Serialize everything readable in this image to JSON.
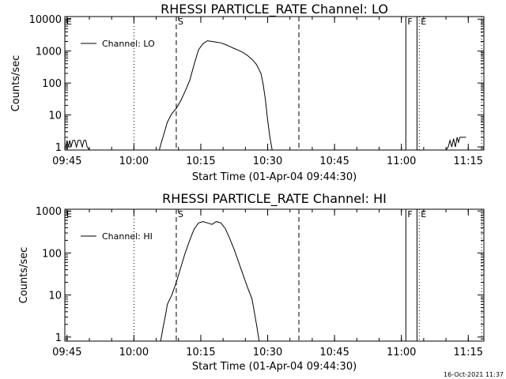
{
  "footer_timestamp": "16-Oct-2021 11:37",
  "chart_data": [
    {
      "type": "line",
      "title": "RHESSI PARTICLE_RATE Channel: LO",
      "xlabel": "Start Time (01-Apr-04 09:44:30)",
      "ylabel": "Counts/sec",
      "yscale": "log",
      "ylim": [
        0.8,
        12000
      ],
      "xlim_min_after_09_44_30": [
        0,
        94
      ],
      "x_ticks": [
        "09:45",
        "10:00",
        "10:15",
        "10:30",
        "10:45",
        "11:00",
        "11:15"
      ],
      "y_ticks": [
        {
          "value": 1,
          "label": "1"
        },
        {
          "value": 10,
          "label": "10"
        },
        {
          "value": 100,
          "label": "100"
        },
        {
          "value": 1000,
          "label": "1000"
        },
        {
          "value": 10000,
          "label": "10000"
        }
      ],
      "legend": {
        "position": "top-left",
        "entries": [
          "Channel: LO"
        ]
      },
      "grid": false,
      "markers": [
        {
          "label": "E",
          "time": "09:44:30",
          "style": "dotted"
        },
        {
          "label": "",
          "time": "10:00:00",
          "style": "dotted"
        },
        {
          "label": "S",
          "time": "10:09:30",
          "style": "dashed"
        },
        {
          "label": "",
          "time": "10:37:00",
          "style": "dashed"
        },
        {
          "label": "F",
          "time": "11:01:00",
          "style": "solid"
        },
        {
          "label": "",
          "time": "11:03:30",
          "style": "solid"
        },
        {
          "label": "E",
          "time": "11:04:00",
          "style": "dotted"
        },
        {
          "label": "",
          "time": "11:18:00",
          "style": "dotted"
        }
      ],
      "series": [
        {
          "name": "Channel: LO",
          "segments": [
            [
              [
                0.2,
                1
              ],
              [
                0.5,
                1.6
              ],
              [
                0.8,
                1
              ],
              [
                1.1,
                1.6
              ],
              [
                1.4,
                1
              ],
              [
                1.8,
                1.6
              ],
              [
                2.2,
                1.6
              ],
              [
                2.6,
                1
              ],
              [
                3,
                1.6
              ],
              [
                3.5,
                1.6
              ],
              [
                3.9,
                1
              ],
              [
                4.3,
                1.6
              ],
              [
                4.7,
                1.6
              ],
              [
                5,
                1
              ],
              [
                5.5,
                0.8
              ]
            ],
            [
              [
                21.2,
                0.8
              ],
              [
                21.6,
                1.3
              ],
              [
                22.2,
                2.5
              ],
              [
                23,
                6
              ],
              [
                24,
                11
              ],
              [
                25,
                16
              ],
              [
                26,
                28
              ],
              [
                27,
                55
              ],
              [
                28,
                120
              ],
              [
                29,
                380
              ],
              [
                30,
                1100
              ],
              [
                31,
                1700
              ],
              [
                32,
                2100
              ],
              [
                33,
                2000
              ],
              [
                34,
                1900
              ],
              [
                35,
                1800
              ],
              [
                36,
                1600
              ],
              [
                37,
                1400
              ],
              [
                38,
                1200
              ],
              [
                39,
                1050
              ],
              [
                40,
                900
              ],
              [
                41,
                720
              ],
              [
                42,
                550
              ],
              [
                43,
                380
              ],
              [
                44,
                200
              ],
              [
                44.5,
                90
              ],
              [
                45,
                30
              ],
              [
                45.5,
                7
              ],
              [
                46,
                2
              ],
              [
                46.5,
                0.8
              ]
            ],
            [
              [
                85.5,
                0.8
              ],
              [
                86,
                1
              ],
              [
                86.4,
                1.6
              ],
              [
                86.8,
                1
              ],
              [
                87.2,
                1.8
              ],
              [
                87.6,
                1
              ],
              [
                88,
                2
              ],
              [
                88.3,
                1.4
              ],
              [
                88.6,
                2
              ],
              [
                89.2,
                2
              ],
              [
                90,
                2
              ]
            ]
          ]
        }
      ]
    },
    {
      "type": "line",
      "title": "RHESSI PARTICLE_RATE Channel: HI",
      "xlabel": "Start Time (01-Apr-04 09:44:30)",
      "ylabel": "Counts/sec",
      "yscale": "log",
      "ylim": [
        0.8,
        1100
      ],
      "xlim_min_after_09_44_30": [
        0,
        94
      ],
      "x_ticks": [
        "09:45",
        "10:00",
        "10:15",
        "10:30",
        "10:45",
        "11:00",
        "11:15"
      ],
      "y_ticks": [
        {
          "value": 1,
          "label": "1"
        },
        {
          "value": 10,
          "label": "10"
        },
        {
          "value": 100,
          "label": "100"
        },
        {
          "value": 1000,
          "label": "1000"
        }
      ],
      "legend": {
        "position": "top-left",
        "entries": [
          "Channel: HI"
        ]
      },
      "grid": false,
      "markers": [
        {
          "label": "E",
          "time": "09:44:30",
          "style": "dotted"
        },
        {
          "label": "",
          "time": "10:00:00",
          "style": "dotted"
        },
        {
          "label": "S",
          "time": "10:09:30",
          "style": "dashed"
        },
        {
          "label": "",
          "time": "10:37:00",
          "style": "dashed"
        },
        {
          "label": "F",
          "time": "11:01:00",
          "style": "solid"
        },
        {
          "label": "",
          "time": "11:03:30",
          "style": "solid"
        },
        {
          "label": "E",
          "time": "11:04:00",
          "style": "dotted"
        },
        {
          "label": "",
          "time": "11:18:00",
          "style": "dotted"
        }
      ],
      "series": [
        {
          "name": "Channel: HI",
          "segments": [
            [
              [
                21.5,
                0.8
              ],
              [
                22,
                1.6
              ],
              [
                22.5,
                3
              ],
              [
                23,
                6
              ],
              [
                24,
                10
              ],
              [
                25,
                20
              ],
              [
                26,
                45
              ],
              [
                27,
                100
              ],
              [
                28,
                200
              ],
              [
                29,
                370
              ],
              [
                30,
                520
              ],
              [
                31,
                560
              ],
              [
                32,
                520
              ],
              [
                33,
                480
              ],
              [
                34,
                560
              ],
              [
                35,
                520
              ],
              [
                36,
                380
              ],
              [
                37,
                220
              ],
              [
                38,
                120
              ],
              [
                39,
                60
              ],
              [
                40,
                30
              ],
              [
                41,
                15
              ],
              [
                42,
                8
              ],
              [
                42.5,
                4
              ],
              [
                43,
                2
              ],
              [
                43.6,
                0.8
              ]
            ]
          ]
        }
      ]
    }
  ]
}
